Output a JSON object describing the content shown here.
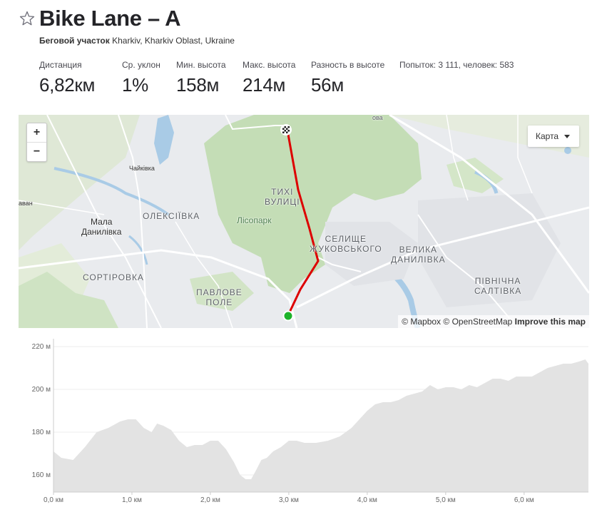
{
  "segment": {
    "title": "Bike Lane – A",
    "type": "Беговой участок",
    "location": "Kharkiv, Kharkiv Oblast, Ukraine"
  },
  "stats": [
    {
      "label": "Дистанция",
      "value": "6,82км"
    },
    {
      "label": "Ср. уклон",
      "value": "1%"
    },
    {
      "label": "Мин. высота",
      "value": "158м"
    },
    {
      "label": "Макс. высота",
      "value": "214м"
    },
    {
      "label": "Разность в высоте",
      "value": "56м"
    }
  ],
  "attempts": "Попыток: 3 111, человек: 583",
  "map": {
    "zoom_in": "+",
    "zoom_out": "−",
    "map_type": "Карта",
    "attribution_mapbox": "© Mapbox",
    "attribution_osm": "© OpenStreetMap",
    "improve": "Improve this map",
    "labels": {
      "chaikivka": "Чайківка",
      "avan": "аван",
      "mala_danylivka": "Мала\nДанилівка",
      "oleksiivka": "ОЛЕКСІЇВКА",
      "tykhi_vulytsi": "ТИХІ\nВУЛИЦІ",
      "lisopark": "Лісопарк",
      "selyshche": "СЕЛИЩЕ\nЖУКОВСЬКОГО",
      "velyka_danylivka": "ВЕЛИКА\nДАНИЛІВКА",
      "sortyrovka": "СОРТІРОВКА",
      "pavlove_pole": "ПАВЛОВЕ\nПОЛЕ",
      "pivnichna_saltivka": "ПІВНІЧНА\nСАЛТІВКА",
      "ova": "ова"
    },
    "colors": {
      "route": "#dd0000",
      "start": "#1db32a",
      "forest": "#bfdcb3",
      "water": "#a9cbe6"
    }
  },
  "chart_data": {
    "type": "area",
    "xlabel": "",
    "ylabel": "",
    "xlim": [
      0,
      6.82
    ],
    "ylim": [
      152,
      222
    ],
    "x_ticks": [
      0,
      1,
      2,
      3,
      4,
      5,
      6
    ],
    "x_tick_labels": [
      "0,0 км",
      "1,0 км",
      "2,0 км",
      "3,0 км",
      "4,0 км",
      "5,0 км",
      "6,0 км"
    ],
    "y_ticks": [
      160,
      180,
      200,
      220
    ],
    "y_tick_labels": [
      "160 м",
      "180 м",
      "200 м",
      "220 м"
    ],
    "grid": true,
    "fill_color": "#e3e3e3",
    "series": [
      {
        "x": [
          0,
          0.1,
          0.25,
          0.4,
          0.55,
          0.7,
          0.85,
          0.95,
          1.05,
          1.15,
          1.25,
          1.32,
          1.4,
          1.5,
          1.6,
          1.7,
          1.8,
          1.9,
          2.0,
          2.1,
          2.2,
          2.3,
          2.38,
          2.45,
          2.52,
          2.58,
          2.65,
          2.72,
          2.8,
          2.9,
          3.0,
          3.1,
          3.2,
          3.35,
          3.5,
          3.65,
          3.8,
          3.9,
          4.0,
          4.1,
          4.2,
          4.3,
          4.4,
          4.5,
          4.6,
          4.7,
          4.8,
          4.9,
          5.0,
          5.1,
          5.2,
          5.3,
          5.4,
          5.5,
          5.6,
          5.7,
          5.8,
          5.9,
          6.0,
          6.1,
          6.2,
          6.3,
          6.4,
          6.5,
          6.6,
          6.7,
          6.78,
          6.82
        ],
        "y": [
          171,
          168,
          167,
          173,
          180,
          182,
          185,
          186,
          186,
          182,
          180,
          184,
          183,
          181,
          176,
          173,
          174,
          174,
          176,
          176,
          172,
          166,
          160,
          158,
          158,
          162,
          167,
          168,
          171,
          173,
          176,
          176,
          175,
          175,
          176,
          178,
          182,
          186,
          190,
          193,
          194,
          194,
          195,
          197,
          198,
          199,
          202,
          200,
          201,
          201,
          200,
          202,
          201,
          203,
          205,
          205,
          204,
          206,
          206,
          206,
          208,
          210,
          211,
          212,
          212,
          213,
          214,
          212
        ]
      }
    ]
  }
}
